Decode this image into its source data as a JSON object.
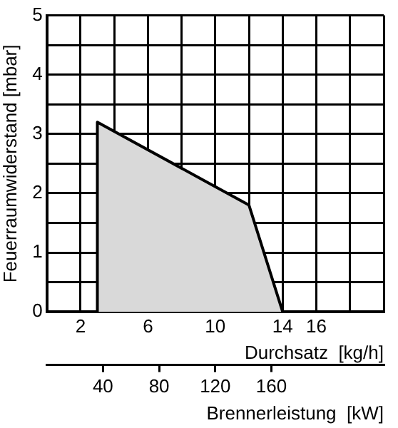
{
  "chart_data": {
    "type": "area",
    "xlabel": "Durchsatz  [kg/h]",
    "ylabel": "Feuerraumwiderstand [mbar]",
    "x2label": "Brennerleistung  [kW]",
    "series": [
      {
        "color": "#d9d9d9",
        "x": [
          3,
          3,
          12,
          14
        ],
        "values": [
          0,
          3.2,
          1.8,
          0
        ]
      }
    ],
    "xlim": [
      0,
      20
    ],
    "xticks": [
      {
        "value": 0,
        "label": null
      },
      2,
      {
        "value": 4,
        "label": null
      },
      6,
      {
        "value": 8,
        "label": null
      },
      10,
      {
        "value": 12,
        "label": null
      },
      14,
      16,
      {
        "value": 18,
        "label": null
      },
      {
        "value": 20,
        "label": null
      }
    ],
    "ylim": [
      0,
      5
    ],
    "yticks": [
      0,
      {
        "value": 0.5,
        "label": null
      },
      1,
      {
        "value": 1.5,
        "label": null
      },
      2,
      {
        "value": 2.5,
        "label": null
      },
      3,
      {
        "value": 3.5,
        "label": null
      },
      4,
      {
        "value": 4.5,
        "label": null
      },
      5
    ],
    "x2lim": [
      0,
      240
    ],
    "x2ticks": [
      40,
      80,
      120,
      160
    ],
    "grid": true,
    "legend": false,
    "marker": "none",
    "line_style": "solid"
  }
}
